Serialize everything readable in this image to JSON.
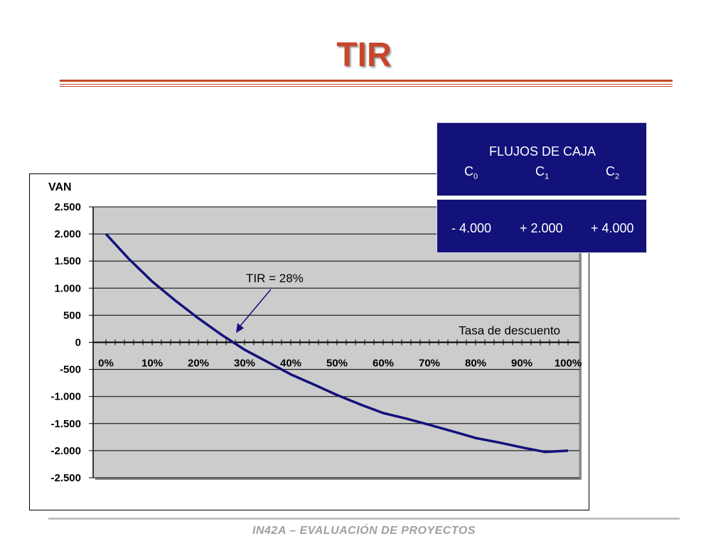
{
  "slide": {
    "title": "TIR",
    "footer": "IN42A – EVALUACIÓN DE PROYECTOS"
  },
  "flows": {
    "title": "FLUJOS DE CAJA",
    "columns": [
      {
        "label": "C",
        "sub": "0"
      },
      {
        "label": "C",
        "sub": "1"
      },
      {
        "label": "C",
        "sub": "2"
      }
    ],
    "values": [
      "- 4.000",
      "+ 2.000",
      "+ 4.000"
    ]
  },
  "colors": {
    "title": "#c8462a",
    "line": "#13117a",
    "plot_bg": "#cccccc",
    "table_bg": "#13117a"
  },
  "chart_data": {
    "type": "line",
    "ylabel": "VAN",
    "xlabel": "Tasa de descuento",
    "x_ticks": [
      "0%",
      "10%",
      "20%",
      "30%",
      "40%",
      "50%",
      "60%",
      "70%",
      "80%",
      "90%",
      "100%"
    ],
    "y_ticks": [
      "2.500",
      "2.000",
      "1.500",
      "1.000",
      "500",
      "0",
      "-500",
      "-1.000",
      "-1.500",
      "-2.000",
      "-2.500"
    ],
    "ylim": [
      -2500,
      2500
    ],
    "xlim": [
      0,
      100
    ],
    "grid": true,
    "series": [
      {
        "x": [
          0,
          5,
          10,
          15,
          20,
          25,
          30,
          35,
          40,
          45,
          50,
          55,
          60,
          65,
          70,
          75,
          80,
          85,
          90,
          95,
          100
        ],
        "values": [
          2000,
          1537,
          1124,
          772,
          444,
          140,
          -137,
          -363,
          -592,
          -780,
          -972,
          -1146,
          -1306,
          -1408,
          -1524,
          -1643,
          -1766,
          -1848,
          -1939,
          -2024,
          -2000
        ]
      }
    ],
    "annotation": {
      "text": "TIR = 28%",
      "x": 28,
      "y": 0
    }
  }
}
